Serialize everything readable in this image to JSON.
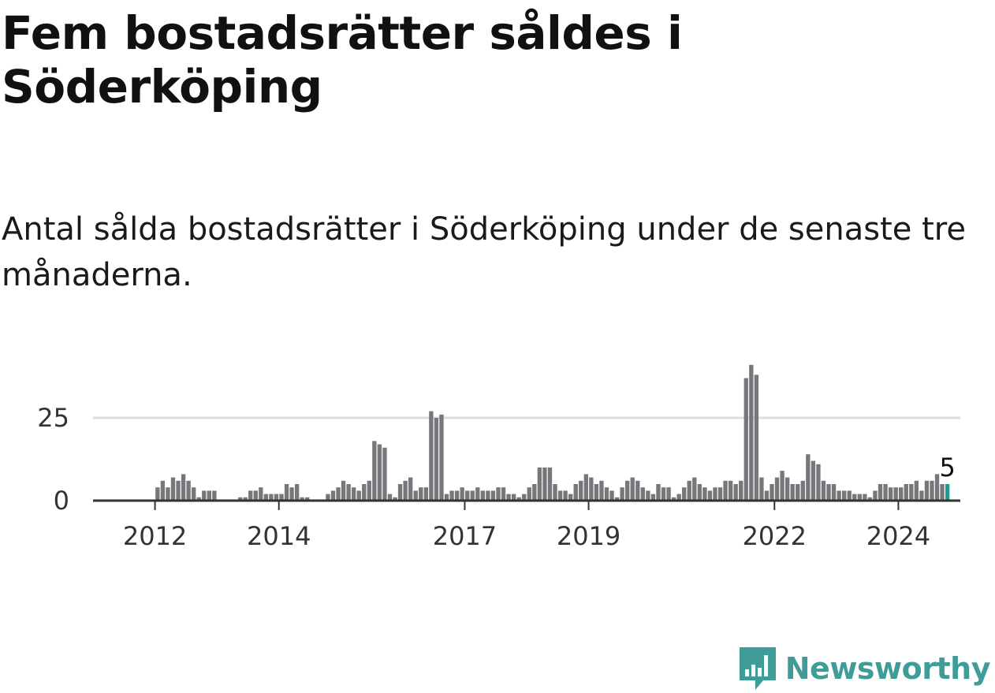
{
  "title": "Fem bostadsrätter såldes i Söderköping",
  "subtitle": "Antal sålda bostadsrätter i Söderköping under de senaste tre månaderna.",
  "brand": {
    "name": "Newsworthy",
    "color": "#3f9c98",
    "icon": "newsworthy-logo-icon"
  },
  "colors": {
    "bar": "#77767b",
    "highlight": "#1a9e92",
    "grid": "#dddddd",
    "axis": "#333333"
  },
  "chart_data": {
    "type": "bar",
    "title": "",
    "xlabel": "",
    "ylabel": "",
    "x_start": "2011-01",
    "x_end": "2025-01",
    "ylim": [
      0,
      43
    ],
    "yticks": [
      0,
      25
    ],
    "ytick_labels": [
      "0",
      "25"
    ],
    "xticks": [
      {
        "date": "2012-01",
        "label": "2012"
      },
      {
        "date": "2014-01",
        "label": "2014"
      },
      {
        "date": "2017-01",
        "label": "2017"
      },
      {
        "date": "2019-01",
        "label": "2019"
      },
      {
        "date": "2022-01",
        "label": "2022"
      },
      {
        "date": "2024-01",
        "label": "2024"
      }
    ],
    "grid": true,
    "highlight_last": true,
    "last_value_label": "5",
    "series": [
      {
        "start": "2011-01",
        "values": [
          0,
          0,
          0,
          0,
          0,
          0,
          0,
          0,
          0,
          0,
          0,
          0,
          4,
          6,
          4,
          7,
          6,
          8,
          6,
          4,
          1,
          3,
          3,
          3,
          0,
          0,
          0,
          0,
          1,
          1,
          3,
          3,
          4,
          2,
          2,
          2,
          2,
          5,
          4,
          5,
          1,
          1,
          0,
          0,
          0,
          2,
          3,
          4,
          6,
          5,
          4,
          3,
          5,
          6,
          18,
          17,
          16,
          2,
          1,
          5,
          6,
          7,
          3,
          4,
          4,
          27,
          25,
          26,
          2,
          3,
          3,
          4,
          3,
          3,
          4,
          3,
          3,
          3,
          4,
          4,
          2,
          2,
          1,
          2,
          4,
          5,
          10,
          10,
          10,
          5,
          3,
          3,
          2,
          5,
          6,
          8,
          7,
          5,
          6,
          4,
          3,
          1,
          4,
          6,
          7,
          6,
          4,
          3,
          2,
          5,
          4,
          4,
          1,
          2,
          4,
          6,
          7,
          5,
          4,
          3,
          4,
          4,
          6,
          6,
          5,
          6,
          37,
          41,
          38,
          7,
          3,
          5,
          7,
          9,
          7,
          5,
          5,
          6,
          14,
          12,
          11,
          6,
          5,
          5,
          3,
          3,
          3,
          2,
          2,
          2,
          1,
          3,
          5,
          5,
          4,
          4,
          4,
          5,
          5,
          6,
          3,
          6,
          6,
          8,
          5,
          5
        ]
      }
    ]
  }
}
